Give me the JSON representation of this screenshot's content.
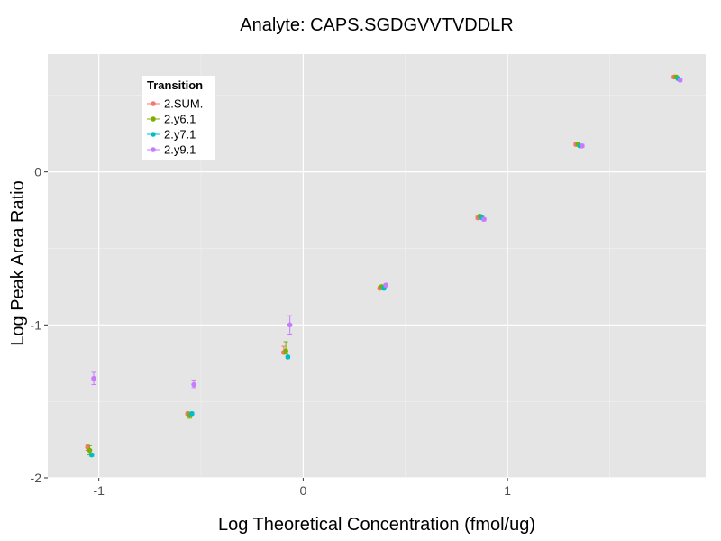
{
  "chart_data": {
    "type": "scatter",
    "title": "Analyte: CAPS.SGDGVVTVDDLR",
    "xlabel": "Log Theoretical Concentration (fmol/ug)",
    "ylabel": "Log Peak Area Ratio",
    "xlim": [
      -1.25,
      1.97
    ],
    "ylim": [
      -2.0,
      0.77
    ],
    "x_ticks": [
      -1,
      0,
      1
    ],
    "x_tick_labels": [
      "-1",
      "0",
      "1"
    ],
    "y_ticks": [
      -2,
      -1,
      0
    ],
    "y_tick_labels": [
      "-2",
      "-1",
      "0"
    ],
    "legend": {
      "title": "Transition",
      "position": "top-left"
    },
    "colors": {
      "panel_bg": "#e5e5e5",
      "grid": "#ffffff",
      "2.SUM.": "#f8766d",
      "2.y6.1": "#7cae00",
      "2.y7.1": "#00bfc4",
      "2.y9.1": "#c77cff"
    },
    "series": [
      {
        "name": "2.SUM.",
        "points": [
          {
            "x": -1.055,
            "y": -1.8,
            "lo": -1.82,
            "hi": -1.78
          },
          {
            "x": -0.565,
            "y": -1.58,
            "lo": -1.59,
            "hi": -1.57
          },
          {
            "x": -0.095,
            "y": -1.18,
            "lo": -1.19,
            "hi": -1.14
          },
          {
            "x": 0.375,
            "y": -0.76,
            "lo": -0.77,
            "hi": -0.75
          },
          {
            "x": 0.855,
            "y": -0.3,
            "lo": -0.31,
            "hi": -0.29
          },
          {
            "x": 1.335,
            "y": 0.18,
            "lo": 0.17,
            "hi": 0.19
          },
          {
            "x": 1.815,
            "y": 0.62,
            "lo": 0.61,
            "hi": 0.63
          }
        ]
      },
      {
        "name": "2.y6.1",
        "points": [
          {
            "x": -1.045,
            "y": -1.82,
            "lo": -1.85,
            "hi": -1.79
          },
          {
            "x": -0.555,
            "y": -1.59,
            "lo": -1.61,
            "hi": -1.57
          },
          {
            "x": -0.085,
            "y": -1.17,
            "lo": -1.19,
            "hi": -1.11
          },
          {
            "x": 0.385,
            "y": -0.75,
            "lo": -0.76,
            "hi": -0.74
          },
          {
            "x": 0.865,
            "y": -0.29,
            "lo": -0.3,
            "hi": -0.28
          },
          {
            "x": 1.345,
            "y": 0.18,
            "lo": 0.17,
            "hi": 0.19
          },
          {
            "x": 1.825,
            "y": 0.62,
            "lo": 0.61,
            "hi": 0.63
          }
        ]
      },
      {
        "name": "2.y7.1",
        "points": [
          {
            "x": -1.035,
            "y": -1.85,
            "lo": -1.86,
            "hi": -1.84
          },
          {
            "x": -0.545,
            "y": -1.58,
            "lo": -1.59,
            "hi": -1.57
          },
          {
            "x": -0.075,
            "y": -1.21,
            "lo": -1.22,
            "hi": -1.2
          },
          {
            "x": 0.395,
            "y": -0.76,
            "lo": -0.77,
            "hi": -0.75
          },
          {
            "x": 0.875,
            "y": -0.3,
            "lo": -0.31,
            "hi": -0.29
          },
          {
            "x": 1.355,
            "y": 0.17,
            "lo": 0.16,
            "hi": 0.18
          },
          {
            "x": 1.835,
            "y": 0.61,
            "lo": 0.6,
            "hi": 0.62
          }
        ]
      },
      {
        "name": "2.y9.1",
        "points": [
          {
            "x": -1.025,
            "y": -1.35,
            "lo": -1.39,
            "hi": -1.31
          },
          {
            "x": -0.535,
            "y": -1.39,
            "lo": -1.41,
            "hi": -1.36
          },
          {
            "x": -0.065,
            "y": -1.0,
            "lo": -1.06,
            "hi": -0.94
          },
          {
            "x": 0.405,
            "y": -0.74,
            "lo": -0.75,
            "hi": -0.73
          },
          {
            "x": 0.885,
            "y": -0.31,
            "lo": -0.32,
            "hi": -0.3
          },
          {
            "x": 1.365,
            "y": 0.17,
            "lo": 0.16,
            "hi": 0.18
          },
          {
            "x": 1.845,
            "y": 0.6,
            "lo": 0.59,
            "hi": 0.61
          }
        ]
      }
    ]
  }
}
